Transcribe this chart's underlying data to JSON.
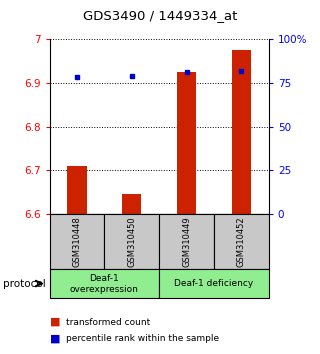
{
  "title": "GDS3490 / 1449334_at",
  "samples": [
    "GSM310448",
    "GSM310450",
    "GSM310449",
    "GSM310452"
  ],
  "red_values": [
    6.71,
    6.645,
    6.925,
    6.975
  ],
  "blue_values": [
    0.785,
    0.787,
    0.81,
    0.815
  ],
  "ylim_left": [
    6.6,
    7.0
  ],
  "ylim_right": [
    0.0,
    1.0
  ],
  "yticks_left": [
    6.6,
    6.7,
    6.8,
    6.9,
    7.0
  ],
  "ytick_labels_left": [
    "6.6",
    "6.7",
    "6.8",
    "6.9",
    "7"
  ],
  "yticks_right": [
    0.0,
    0.25,
    0.5,
    0.75,
    1.0
  ],
  "ytick_labels_right": [
    "0",
    "25",
    "50",
    "75",
    "100%"
  ],
  "groups": [
    {
      "label": "Deaf-1\noverexpression",
      "color": "#90EE90"
    },
    {
      "label": "Deaf-1 deficiency",
      "color": "#90EE90"
    }
  ],
  "bar_color": "#CC2200",
  "dot_color": "#0000CC",
  "sample_box_color": "#C8C8C8",
  "bar_width": 0.35,
  "protocol_label": "protocol",
  "legend_red": "transformed count",
  "legend_blue": "percentile rank within the sample"
}
